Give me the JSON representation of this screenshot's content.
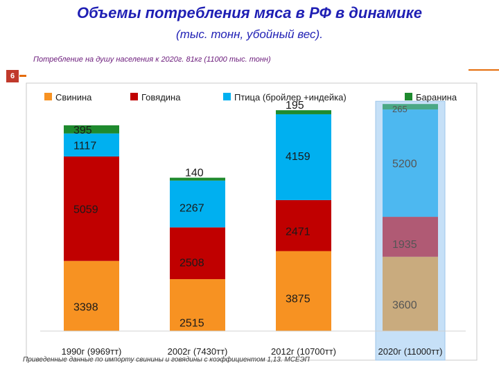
{
  "page": {
    "title": "Объемы потребления мяса в РФ в динамике",
    "subtitle": "(тыс. тонн, убойный вес).",
    "note_top": "Потребление на душу населения к 2020г. 81кг (11000 тыс. тонн)",
    "slide_number": "6",
    "note_bottom": "Приведенные данные по импорту свинины и говядины с коэффициентом 1,13. МСЕЭП"
  },
  "chart_data": {
    "type": "bar",
    "stacked": true,
    "categories": [
      "1990г (9969тт)",
      "2002г (7430тт)",
      "2012г (10700тт)",
      "2020г (11000тт)"
    ],
    "series": [
      {
        "name": "Свинина",
        "values": [
          3398,
          2515,
          3875,
          3600
        ],
        "color": "#f79222"
      },
      {
        "name": "Говядина",
        "values": [
          5059,
          2508,
          2471,
          1935
        ],
        "color": "#c00000"
      },
      {
        "name": "Птица (бройлер +индейка)",
        "values": [
          1117,
          2267,
          4159,
          5200
        ],
        "color": "#00b0f0"
      },
      {
        "name": "Баранина",
        "values": [
          395,
          140,
          195,
          265
        ],
        "color": "#1e8a2e"
      }
    ],
    "projected": {
      "category_index": 3,
      "colors": [
        "#c9ab7e",
        "#b05a74",
        "#4db8f0",
        "#4aa886"
      ],
      "highlight": "#c6e0f7"
    },
    "legend_position": "top",
    "grid": false
  }
}
